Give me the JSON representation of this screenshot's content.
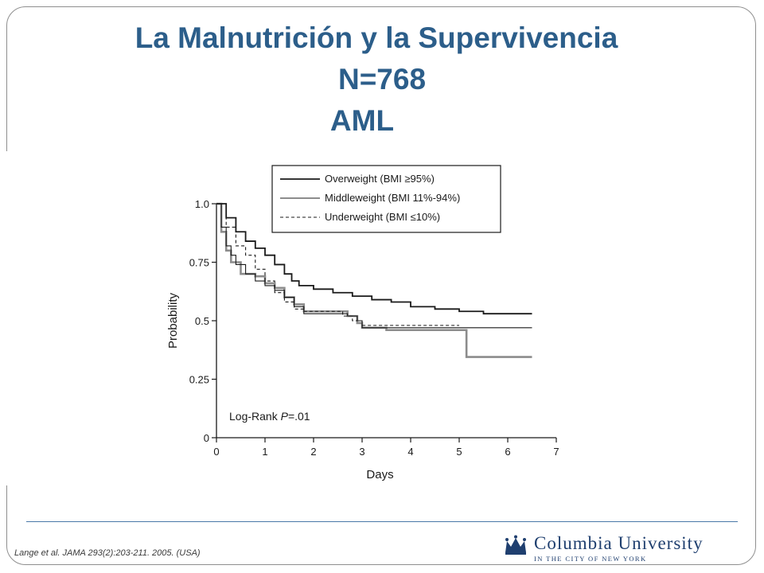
{
  "slide": {
    "title_line1": "La Malnutrición y la Supervivencia",
    "title_line2": "N=768",
    "title_line3": "AML",
    "citation": "Lange et al. JAMA 293(2):203-211.  2005. (USA)",
    "logo": {
      "name": "Columbia University",
      "subtitle": "IN THE CITY OF NEW YORK",
      "icon": "crown-icon"
    },
    "colors": {
      "title": "#2c5e8a",
      "rule": "#4a78a8",
      "logo": "#1f3f6f"
    }
  },
  "chart_data": {
    "type": "line",
    "title": "",
    "xlabel": "Days",
    "ylabel": "Probability",
    "xlim": [
      0,
      7
    ],
    "ylim": [
      0,
      1.0
    ],
    "x_ticks": [
      0,
      1,
      2,
      3,
      4,
      5,
      6,
      7
    ],
    "y_ticks": [
      0,
      0.25,
      0.5,
      0.75,
      1.0
    ],
    "y_tick_labels": [
      "0",
      "0.25",
      "0.5",
      "0.75",
      "1.0"
    ],
    "grid": false,
    "legend_position": "top-right",
    "annotation": {
      "text_prefix": "Log-Rank ",
      "text_italic": "P",
      "text_suffix": "=.01"
    },
    "series": [
      {
        "name": "Overweight (BMI ≥95%)",
        "style": "thick",
        "color": "#1a1a1a",
        "x": [
          0,
          0.2,
          0.4,
          0.6,
          0.8,
          1.0,
          1.2,
          1.4,
          1.55,
          1.7,
          2.0,
          2.4,
          2.8,
          3.2,
          3.6,
          4.0,
          4.5,
          5.0,
          5.5,
          6.0,
          6.5
        ],
        "y": [
          1.0,
          0.94,
          0.88,
          0.84,
          0.81,
          0.78,
          0.74,
          0.7,
          0.67,
          0.65,
          0.635,
          0.62,
          0.605,
          0.59,
          0.58,
          0.56,
          0.55,
          0.54,
          0.53,
          0.53,
          0.53
        ]
      },
      {
        "name": "Middleweight (BMI 11%-94%)",
        "style": "thin",
        "color": "#1a1a1a",
        "x": [
          0,
          0.1,
          0.2,
          0.3,
          0.4,
          0.6,
          0.8,
          1.0,
          1.2,
          1.4,
          1.6,
          1.8,
          2.0,
          2.4,
          2.7,
          2.9,
          3.0,
          3.5,
          4.0,
          4.5,
          5.0,
          5.2,
          5.5,
          6.0,
          6.5
        ],
        "y": [
          1.0,
          0.9,
          0.82,
          0.78,
          0.74,
          0.7,
          0.67,
          0.65,
          0.63,
          0.6,
          0.56,
          0.53,
          0.53,
          0.53,
          0.52,
          0.5,
          0.47,
          0.47,
          0.47,
          0.47,
          0.47,
          0.47,
          0.47,
          0.47,
          0.47
        ]
      },
      {
        "name": "Underweight (BMI ≤10%)",
        "style": "dashed",
        "color": "#1a1a1a",
        "x": [
          0,
          0.2,
          0.4,
          0.6,
          0.8,
          1.0,
          1.2,
          1.4,
          1.6,
          1.8,
          2.0,
          2.6,
          2.8,
          3.0,
          3.5,
          4.0,
          4.5,
          5.0
        ],
        "y": [
          1.0,
          0.9,
          0.82,
          0.78,
          0.72,
          0.67,
          0.62,
          0.58,
          0.55,
          0.54,
          0.54,
          0.52,
          0.5,
          0.48,
          0.48,
          0.48,
          0.48,
          0.48
        ]
      },
      {
        "name": "",
        "style": "gray-thick",
        "color": "#8c8c8c",
        "x": [
          0,
          0.1,
          0.2,
          0.3,
          0.5,
          0.8,
          1.0,
          1.2,
          1.4,
          1.6,
          1.8,
          2.0,
          2.4,
          2.7,
          2.9,
          3.0,
          3.5,
          4.0,
          4.5,
          5.0,
          5.15,
          5.5,
          6.0,
          6.5
        ],
        "y": [
          1.0,
          0.88,
          0.8,
          0.75,
          0.7,
          0.69,
          0.66,
          0.64,
          0.6,
          0.57,
          0.54,
          0.54,
          0.54,
          0.52,
          0.49,
          0.47,
          0.46,
          0.46,
          0.46,
          0.46,
          0.345,
          0.345,
          0.345,
          0.345
        ]
      }
    ]
  }
}
